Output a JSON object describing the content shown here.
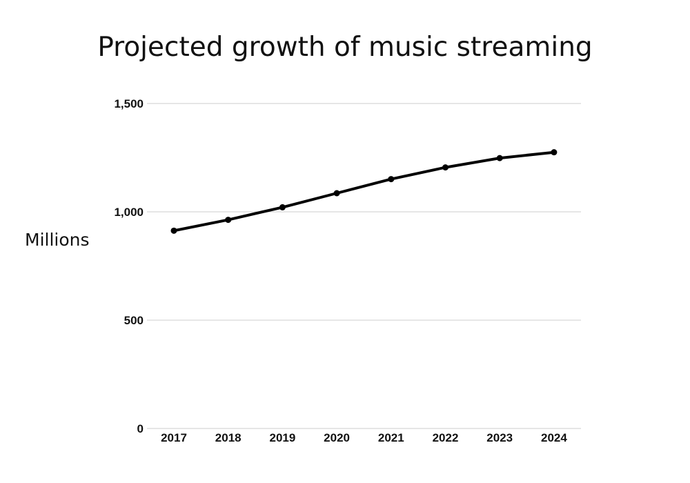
{
  "chart_data": {
    "type": "line",
    "title": "Projected growth of music streaming",
    "xlabel": "",
    "ylabel": "Millions",
    "x": [
      "2017",
      "2018",
      "2019",
      "2020",
      "2021",
      "2022",
      "2023",
      "2024"
    ],
    "series": [
      {
        "values": [
          913,
          963,
          1021,
          1086,
          1151,
          1205,
          1248,
          1275
        ],
        "color": "#000000"
      }
    ],
    "ylim": [
      0,
      1500
    ],
    "yticks": [
      0,
      500,
      1000,
      1500
    ],
    "ytick_labels": [
      "0",
      "500",
      "1,000",
      "1,500"
    ],
    "grid": true,
    "legend": "none",
    "colors": {
      "line": "#000000",
      "grid": "#cccccc",
      "text": "#111111"
    }
  }
}
